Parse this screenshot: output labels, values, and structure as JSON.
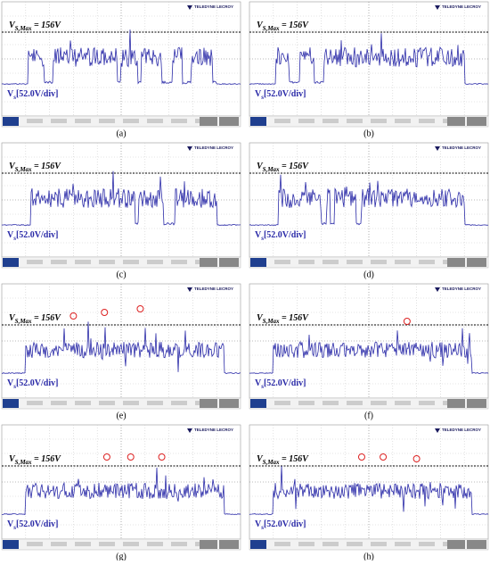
{
  "brand": "TELEDYNE LECROY",
  "vmax": {
    "symbol": "V",
    "sub": "S,Max",
    "value": " = 156V"
  },
  "vdiv": {
    "symbol": "V",
    "sub": "s",
    "value": "[52.0V/div]"
  },
  "panels": [
    "(a)",
    "(b)",
    "(c)",
    "(d)",
    "(e)",
    "(f)",
    "(g)",
    "(h)"
  ]
}
